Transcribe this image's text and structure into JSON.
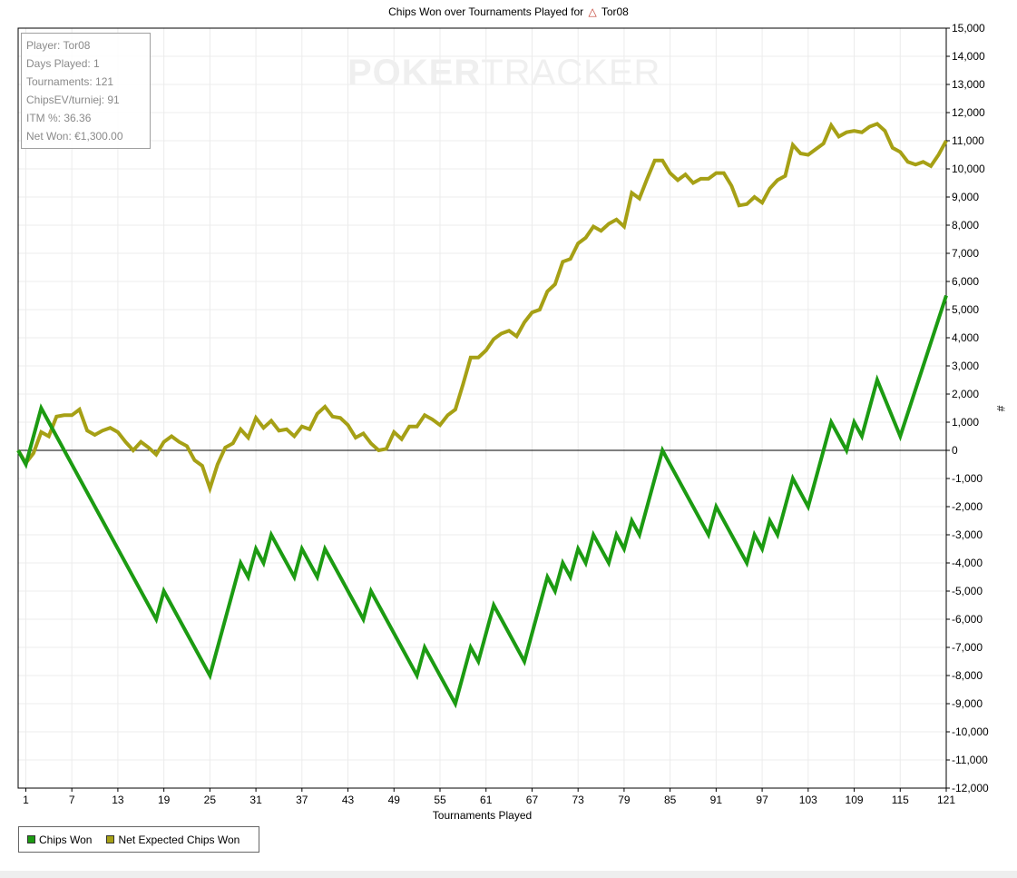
{
  "chart_data": {
    "type": "line",
    "title": "Chips Won over Tournaments Played for",
    "title_player": "Tor08",
    "xlabel": "Tournaments Played",
    "ylabel": "#",
    "ylim": [
      -12000,
      15000
    ],
    "xlim": [
      0,
      121
    ],
    "grid": true,
    "legend_position": "bottom-left",
    "x_ticks": [
      1,
      7,
      13,
      19,
      25,
      31,
      37,
      43,
      49,
      55,
      61,
      67,
      73,
      79,
      85,
      91,
      97,
      103,
      109,
      115,
      121
    ],
    "y_ticks": [
      15000,
      14000,
      13000,
      12000,
      11000,
      10000,
      9000,
      8000,
      7000,
      6000,
      5000,
      4000,
      3000,
      2000,
      1000,
      0,
      -1000,
      -2000,
      -3000,
      -4000,
      -5000,
      -6000,
      -7000,
      -8000,
      -9000,
      -10000,
      -11000,
      -12000
    ],
    "y_tick_labels": [
      "15,000",
      "14,000",
      "13,000",
      "12,000",
      "11,000",
      "10,000",
      "9,000",
      "8,000",
      "7,000",
      "6,000",
      "5,000",
      "4,000",
      "3,000",
      "2,000",
      "1,000",
      "0",
      "-1,000",
      "-2,000",
      "-3,000",
      "-4,000",
      "-5,000",
      "-6,000",
      "-7,000",
      "-8,000",
      "-9,000",
      "-10,000",
      "-11,000",
      "-12,000"
    ],
    "series": [
      {
        "name": "Chips Won",
        "color": "#1c9b12",
        "x": [
          0,
          1,
          3,
          18,
          19,
          25,
          29,
          30,
          31,
          32,
          33,
          36,
          37,
          39,
          40,
          45,
          46,
          52,
          53,
          57,
          59,
          60,
          62,
          66,
          69,
          70,
          71,
          72,
          73,
          74,
          75,
          77,
          78,
          79,
          80,
          81,
          84,
          90,
          91,
          95,
          96,
          97,
          98,
          99,
          101,
          103,
          106,
          108,
          109,
          110,
          112,
          115,
          121
        ],
        "values": [
          0,
          -500,
          1500,
          -6000,
          -5000,
          -8000,
          -4000,
          -4500,
          -3500,
          -4000,
          -3000,
          -4500,
          -3500,
          -4500,
          -3500,
          -6000,
          -5000,
          -8000,
          -7000,
          -9000,
          -7000,
          -7500,
          -5500,
          -7500,
          -4500,
          -5000,
          -4000,
          -4500,
          -3500,
          -4000,
          -3000,
          -4000,
          -3000,
          -3500,
          -2500,
          -3000,
          0,
          -3000,
          -2000,
          -4000,
          -3000,
          -3500,
          -2500,
          -3000,
          -1000,
          -2000,
          1000,
          0,
          1000,
          500,
          2500,
          500,
          5500
        ]
      },
      {
        "name": "Net Expected Chips Won",
        "color": "#a6a015",
        "x": [
          0,
          1,
          2,
          3,
          4,
          5,
          6,
          7,
          8,
          9,
          10,
          11,
          12,
          13,
          14,
          15,
          16,
          17,
          18,
          19,
          20,
          21,
          22,
          23,
          24,
          25,
          26,
          27,
          28,
          29,
          30,
          31,
          32,
          33,
          34,
          35,
          36,
          37,
          38,
          39,
          40,
          41,
          42,
          43,
          44,
          45,
          46,
          47,
          48,
          49,
          50,
          51,
          52,
          53,
          54,
          55,
          56,
          57,
          58,
          59,
          60,
          61,
          62,
          63,
          64,
          65,
          66,
          67,
          68,
          69,
          70,
          71,
          72,
          73,
          74,
          75,
          76,
          77,
          78,
          79,
          80,
          81,
          82,
          83,
          84,
          85,
          86,
          87,
          88,
          89,
          90,
          91,
          92,
          93,
          94,
          95,
          96,
          97,
          98,
          99,
          100,
          101,
          102,
          103,
          104,
          105,
          106,
          107,
          108,
          109,
          110,
          111,
          112,
          113,
          114,
          115,
          116,
          117,
          118,
          119,
          120,
          121
        ],
        "values": [
          0,
          -450,
          -100,
          650,
          500,
          1200,
          1250,
          1250,
          1450,
          700,
          550,
          700,
          800,
          650,
          300,
          0,
          300,
          100,
          -150,
          300,
          500,
          300,
          150,
          -350,
          -550,
          -1350,
          -500,
          100,
          250,
          750,
          450,
          1150,
          800,
          1050,
          700,
          750,
          500,
          850,
          750,
          1300,
          1550,
          1200,
          1150,
          900,
          450,
          600,
          250,
          0,
          50,
          650,
          400,
          850,
          850,
          1250,
          1100,
          900,
          1250,
          1450,
          2350,
          3300,
          3300,
          3550,
          3950,
          4150,
          4250,
          4050,
          4550,
          4900,
          5000,
          5650,
          5900,
          6700,
          6800,
          7350,
          7550,
          7950,
          7800,
          8050,
          8200,
          7950,
          9150,
          8950,
          9650,
          10300,
          10300,
          9850,
          9600,
          9800,
          9500,
          9650,
          9650,
          9850,
          9850,
          9400,
          8700,
          8750,
          9000,
          8800,
          9300,
          9600,
          9750,
          10850,
          10550,
          10500,
          10700,
          10900,
          11550,
          11150,
          11300,
          11350,
          11300,
          11500,
          11600,
          11350,
          10750,
          10600,
          10250,
          10150,
          10250,
          10100,
          10500,
          11000
        ]
      }
    ]
  },
  "stats": {
    "player": "Player: Tor08",
    "days": "Days Played: 1",
    "tournaments": "Tournaments: 121",
    "chipsev": "ChipsEV/turniej: 91",
    "itm": "ITM %: 36.36",
    "net_won": "Net Won: €1,300.00"
  },
  "watermark": {
    "bold": "POKER",
    "thin": "TRACKER"
  },
  "legend": {
    "chips_won": "Chips Won",
    "net_expected": "Net Expected Chips Won"
  }
}
